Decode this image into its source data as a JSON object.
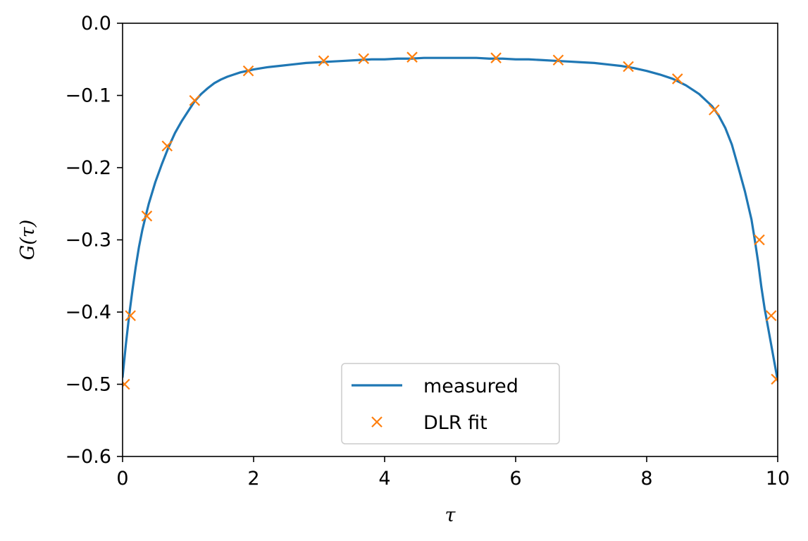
{
  "chart_data": {
    "type": "line",
    "title": "",
    "xlabel": "τ",
    "ylabel": "G(τ)",
    "xlim": [
      0,
      10
    ],
    "ylim": [
      -0.6,
      0.0
    ],
    "xticks": [
      0,
      2,
      4,
      6,
      8,
      10
    ],
    "xtick_labels": [
      "0",
      "2",
      "4",
      "6",
      "8",
      "10"
    ],
    "yticks": [
      0.0,
      -0.1,
      -0.2,
      -0.3,
      -0.4,
      -0.5,
      -0.6
    ],
    "ytick_labels": [
      "0.0",
      "−0.1",
      "−0.2",
      "−0.3",
      "−0.4",
      "−0.5",
      "−0.6"
    ],
    "grid": false,
    "legend_position": "lower-center",
    "series": [
      {
        "name": "measured",
        "style": "line",
        "color": "#1f77b4",
        "x": [
          0.0,
          0.05,
          0.1,
          0.15,
          0.2,
          0.25,
          0.3,
          0.35,
          0.4,
          0.5,
          0.6,
          0.7,
          0.8,
          0.9,
          1.0,
          1.1,
          1.2,
          1.3,
          1.4,
          1.5,
          1.6,
          1.7,
          1.8,
          1.9,
          2.0,
          2.2,
          2.4,
          2.6,
          2.8,
          3.0,
          3.2,
          3.4,
          3.6,
          3.8,
          4.0,
          4.2,
          4.4,
          4.6,
          4.8,
          5.0,
          5.2,
          5.4,
          5.6,
          5.8,
          6.0,
          6.2,
          6.4,
          6.6,
          6.8,
          7.0,
          7.2,
          7.4,
          7.6,
          7.8,
          8.0,
          8.2,
          8.4,
          8.6,
          8.8,
          9.0,
          9.1,
          9.2,
          9.3,
          9.4,
          9.5,
          9.6,
          9.65,
          9.7,
          9.75,
          9.8,
          9.85,
          9.9,
          9.95,
          10.0
        ],
        "y": [
          -0.49,
          -0.445,
          -0.405,
          -0.37,
          -0.338,
          -0.31,
          -0.287,
          -0.268,
          -0.25,
          -0.22,
          -0.195,
          -0.172,
          -0.152,
          -0.136,
          -0.122,
          -0.108,
          -0.098,
          -0.09,
          -0.083,
          -0.078,
          -0.074,
          -0.071,
          -0.068,
          -0.066,
          -0.064,
          -0.061,
          -0.059,
          -0.057,
          -0.055,
          -0.054,
          -0.053,
          -0.052,
          -0.051,
          -0.05,
          -0.05,
          -0.049,
          -0.049,
          -0.048,
          -0.048,
          -0.048,
          -0.048,
          -0.048,
          -0.049,
          -0.049,
          -0.05,
          -0.05,
          -0.051,
          -0.052,
          -0.053,
          -0.054,
          -0.055,
          -0.057,
          -0.059,
          -0.062,
          -0.066,
          -0.071,
          -0.077,
          -0.086,
          -0.098,
          -0.115,
          -0.128,
          -0.145,
          -0.168,
          -0.2,
          -0.233,
          -0.272,
          -0.3,
          -0.33,
          -0.365,
          -0.395,
          -0.42,
          -0.445,
          -0.47,
          -0.495
        ]
      },
      {
        "name": "DLR fit",
        "style": "marker-x",
        "color": "#ff7f0e",
        "x": [
          0.03,
          0.12,
          0.37,
          0.68,
          1.1,
          1.92,
          3.07,
          3.68,
          4.42,
          5.7,
          6.65,
          7.72,
          8.47,
          9.03,
          9.72,
          9.9,
          9.98
        ],
        "y": [
          -0.5,
          -0.405,
          -0.267,
          -0.17,
          -0.107,
          -0.066,
          -0.052,
          -0.049,
          -0.047,
          -0.048,
          -0.051,
          -0.06,
          -0.077,
          -0.12,
          -0.3,
          -0.405,
          -0.493
        ]
      }
    ]
  }
}
